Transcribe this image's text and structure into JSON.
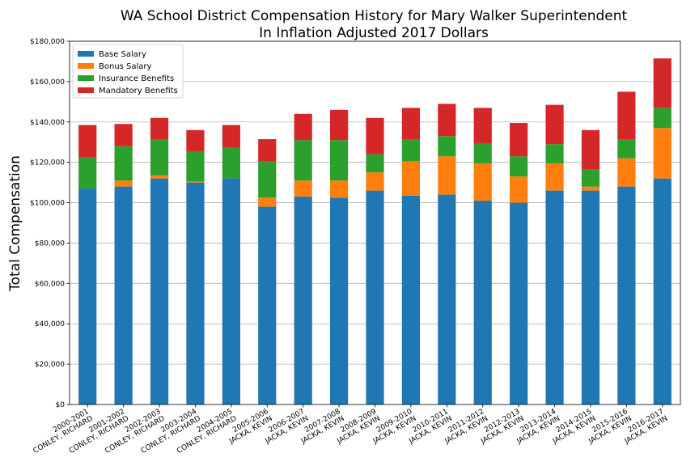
{
  "chart_data": {
    "type": "bar",
    "stacked": true,
    "title_line1": "WA School District Compensation History for Mary Walker Superintendent",
    "title_line2": "In Inflation Adjusted 2017 Dollars",
    "ylabel": "Total Compensation",
    "xlabel": "",
    "ylim": [
      0,
      180000
    ],
    "yticks": [
      0,
      20000,
      40000,
      60000,
      80000,
      100000,
      120000,
      140000,
      160000,
      180000
    ],
    "ytick_labels": [
      "$0",
      "$20,000",
      "$40,000",
      "$60,000",
      "$80,000",
      "$100,000",
      "$120,000",
      "$140,000",
      "$160,000",
      "$180,000"
    ],
    "grid": "horizontal",
    "legend_position": "top-left",
    "categories": [
      [
        "2000-2001",
        "CONLEY, RICHARD"
      ],
      [
        "2001-2002",
        "CONLEY, RICHARD"
      ],
      [
        "2002-2003",
        "CONLEY, RICHARD"
      ],
      [
        "2003-2004",
        "CONLEY, RICHARD"
      ],
      [
        "2004-2005",
        "CONLEY, RICHARD"
      ],
      [
        "2005-2006",
        "JACKA, KEVIN"
      ],
      [
        "2006-2007",
        "JACKA, KEVIN"
      ],
      [
        "2007-2008",
        "JACKA, KEVIN"
      ],
      [
        "2008-2009",
        "JACKA, KEVIN"
      ],
      [
        "2009-2010",
        "JACKA, KEVIN"
      ],
      [
        "2010-2011",
        "JACKA, KEVIN"
      ],
      [
        "2011-2012",
        "JACKA, KEVIN"
      ],
      [
        "2012-2013",
        "JACKA, KEVIN"
      ],
      [
        "2013-2014",
        "JACKA, KEVIN"
      ],
      [
        "2014-2015",
        "JACKA, KEVIN"
      ],
      [
        "2015-2016",
        "JACKA, KEVIN"
      ],
      [
        "2016-2017",
        "JACKA, KEVIN"
      ]
    ],
    "series": [
      {
        "name": "Base Salary",
        "color": "#1f77b4",
        "values": [
          107000,
          108000,
          112000,
          110000,
          112000,
          98000,
          103000,
          102500,
          106000,
          103500,
          104000,
          101000,
          100000,
          106000,
          106000,
          108000,
          112000
        ]
      },
      {
        "name": "Bonus Salary",
        "color": "#ff7f0e",
        "values": [
          0,
          3000,
          1500,
          500,
          0,
          4500,
          8000,
          8500,
          9000,
          17000,
          19000,
          18500,
          13000,
          13500,
          2000,
          14000,
          25000
        ]
      },
      {
        "name": "Insurance Benefits",
        "color": "#2ca02c",
        "values": [
          15500,
          17000,
          18000,
          15000,
          15500,
          18000,
          20000,
          20000,
          9000,
          11000,
          10000,
          10000,
          10000,
          9500,
          8500,
          9500,
          10000
        ]
      },
      {
        "name": "Mandatory Benefits",
        "color": "#d62728",
        "values": [
          16000,
          11000,
          10500,
          10500,
          11000,
          11000,
          13000,
          15000,
          18000,
          15500,
          16000,
          17500,
          16500,
          19500,
          19500,
          23500,
          24500
        ]
      }
    ]
  }
}
